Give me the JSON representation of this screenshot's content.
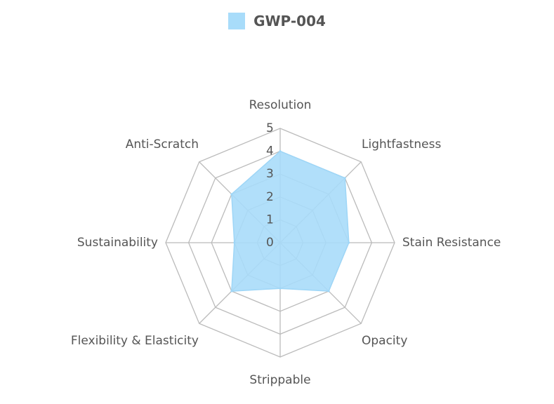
{
  "chart_data": {
    "type": "radar",
    "categories": [
      "Resolution",
      "Lightfastness",
      "Stain Resistance",
      "Opacity",
      "Strippable",
      "Flexibility & Elasticity",
      "Sustainability",
      "Anti-Scratch"
    ],
    "series": [
      {
        "name": "GWP-004",
        "values": [
          4,
          4,
          3,
          3,
          2,
          3,
          2,
          3
        ]
      }
    ],
    "rlim": [
      0,
      5
    ],
    "ticks": [
      "0",
      "1",
      "2",
      "3",
      "4",
      "5"
    ],
    "legend_position": "top",
    "colors": {
      "series_fill": "#a8dcfa",
      "series_stroke": "#9ed6f7",
      "grid": "#bbbbbb",
      "label": "#555555"
    }
  }
}
